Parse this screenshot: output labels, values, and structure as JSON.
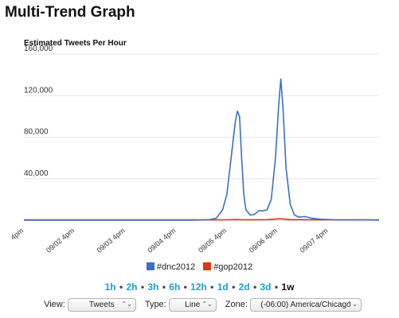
{
  "page_title": "Multi-Trend Graph",
  "range_links": [
    {
      "label": "1h",
      "active": false
    },
    {
      "label": "2h",
      "active": false
    },
    {
      "label": "3h",
      "active": false
    },
    {
      "label": "6h",
      "active": false
    },
    {
      "label": "12h",
      "active": false
    },
    {
      "label": "1d",
      "active": false
    },
    {
      "label": "2d",
      "active": false
    },
    {
      "label": "3d",
      "active": false
    },
    {
      "label": "1w",
      "active": true
    }
  ],
  "range_separator": "•",
  "controls": {
    "view_label": "View:",
    "view_value": "Tweets",
    "type_label": "Type:",
    "type_value": "Line",
    "zone_label": "Zone:",
    "zone_value": "(-06:00) America/Chicago",
    "arrow_glyph": "⌃⌄"
  },
  "chart_data": {
    "type": "line",
    "title": "Estimated Tweets Per Hour",
    "xlabel": "",
    "ylabel": "",
    "ylim": [
      0,
      160000
    ],
    "yticks": [
      {
        "value": 40000,
        "label": "40,000"
      },
      {
        "value": 80000,
        "label": "80,000"
      },
      {
        "value": 120000,
        "label": "120,000"
      },
      {
        "value": 160000,
        "label": "160,000"
      }
    ],
    "xlim": [
      0,
      168
    ],
    "xticks": [
      {
        "value": 0,
        "label": "4pm"
      },
      {
        "value": 24,
        "label": "09/02 4pm"
      },
      {
        "value": 48,
        "label": "09/03 4pm"
      },
      {
        "value": 72,
        "label": "09/04 4pm"
      },
      {
        "value": 96,
        "label": "09/05 4pm"
      },
      {
        "value": 120,
        "label": "09/06 4pm"
      },
      {
        "value": 144,
        "label": "09/07 4pm"
      }
    ],
    "grid": true,
    "legend_position": "bottom",
    "series": [
      {
        "name": "#dnc2012",
        "color": "#3b6fc9",
        "points": [
          [
            0,
            0
          ],
          [
            40,
            0
          ],
          [
            80,
            0
          ],
          [
            88,
            500
          ],
          [
            91,
            2000
          ],
          [
            94,
            10000
          ],
          [
            96,
            25000
          ],
          [
            98,
            60000
          ],
          [
            100,
            95000
          ],
          [
            101,
            105000
          ],
          [
            102,
            100000
          ],
          [
            103,
            60000
          ],
          [
            104,
            25000
          ],
          [
            105,
            10000
          ],
          [
            107,
            5000
          ],
          [
            109,
            5500
          ],
          [
            111,
            9000
          ],
          [
            113,
            9000
          ],
          [
            115,
            10000
          ],
          [
            117,
            20000
          ],
          [
            119,
            60000
          ],
          [
            120.5,
            110000
          ],
          [
            121.5,
            136000
          ],
          [
            122.5,
            110000
          ],
          [
            124,
            50000
          ],
          [
            126,
            15000
          ],
          [
            128,
            5000
          ],
          [
            130,
            3000
          ],
          [
            133,
            3500
          ],
          [
            136,
            2000
          ],
          [
            140,
            1000
          ],
          [
            145,
            500
          ],
          [
            150,
            200
          ],
          [
            158,
            300
          ],
          [
            164,
            200
          ],
          [
            168,
            100
          ]
        ]
      },
      {
        "name": "#gop2012",
        "color": "#dc3912",
        "points": [
          [
            0,
            300
          ],
          [
            40,
            300
          ],
          [
            80,
            300
          ],
          [
            96,
            400
          ],
          [
            100,
            800
          ],
          [
            104,
            400
          ],
          [
            115,
            500
          ],
          [
            121,
            1500
          ],
          [
            126,
            600
          ],
          [
            140,
            400
          ],
          [
            168,
            400
          ]
        ]
      }
    ]
  }
}
